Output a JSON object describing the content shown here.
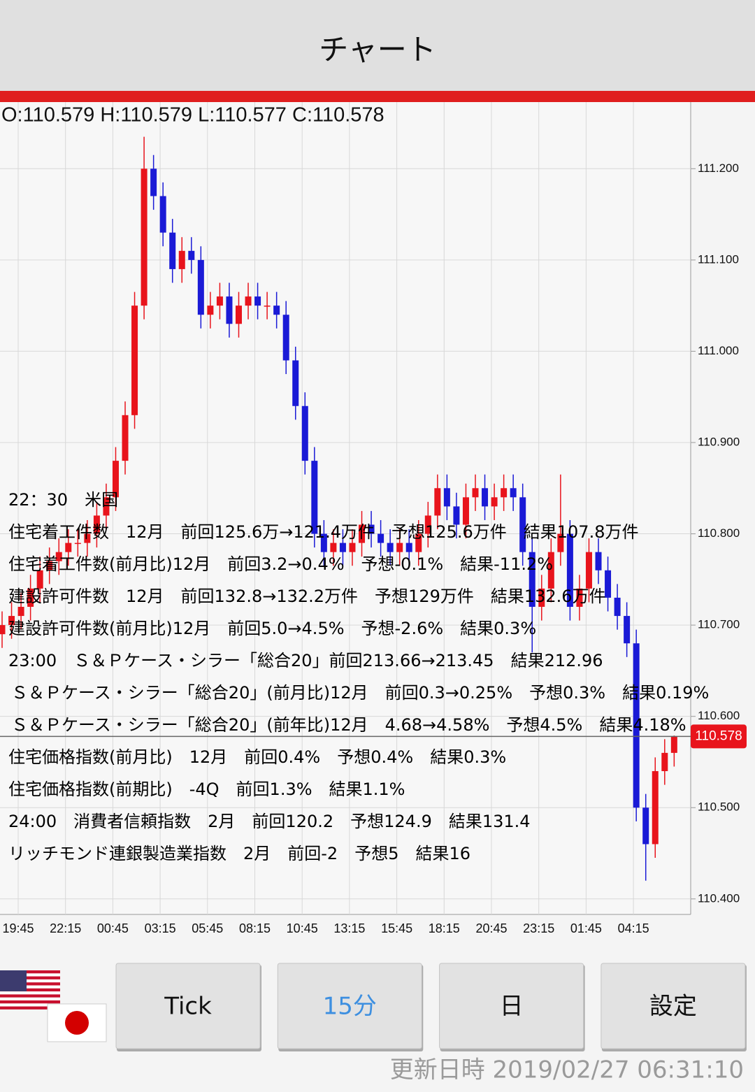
{
  "header": {
    "title": "チャート"
  },
  "ohlc_text": "O:110.579 H:110.579 L:110.577 C:110.578",
  "chart_data": {
    "type": "candlestick",
    "categories": [
      "19:45",
      "22:15",
      "00:45",
      "03:15",
      "05:45",
      "08:15",
      "10:45",
      "13:15",
      "15:45",
      "18:15",
      "20:45",
      "23:15",
      "01:45",
      "04:15"
    ],
    "up_color": "#e8141c",
    "down_color": "#1a1ad6",
    "ylim": [
      110.383,
      111.273
    ],
    "yticks": [
      {
        "value": 110.4,
        "label": "110.400"
      },
      {
        "value": 110.5,
        "label": "110.500"
      },
      {
        "value": 110.6,
        "label": "110.600"
      },
      {
        "value": 110.7,
        "label": "110.700"
      },
      {
        "value": 110.8,
        "label": "110.800"
      },
      {
        "value": 110.9,
        "label": "110.900"
      },
      {
        "value": 111.0,
        "label": "111.000"
      },
      {
        "value": 111.1,
        "label": "111.100"
      },
      {
        "value": 111.2,
        "label": "111.200"
      }
    ],
    "grid": true,
    "last_price": 110.578,
    "open": [
      110.69,
      110.7,
      110.71,
      110.72,
      110.74,
      110.76,
      110.77,
      110.78,
      110.79,
      110.79,
      110.8,
      110.82,
      110.84,
      110.88,
      110.93,
      111.05,
      111.2,
      111.17,
      111.13,
      111.09,
      111.11,
      111.1,
      111.04,
      111.05,
      111.06,
      111.03,
      111.05,
      111.06,
      111.05,
      111.05,
      111.04,
      110.99,
      110.94,
      110.88,
      110.8,
      110.78,
      110.79,
      110.78,
      110.79,
      110.81,
      110.8,
      110.79,
      110.78,
      110.79,
      110.78,
      110.8,
      110.82,
      110.85,
      110.83,
      110.81,
      110.84,
      110.85,
      110.83,
      110.84,
      110.85,
      110.84,
      110.78,
      110.72,
      110.74,
      110.78,
      110.8,
      110.72,
      110.74,
      110.78,
      110.76,
      110.73,
      110.71,
      110.68,
      110.5,
      110.46,
      110.54,
      110.56
    ],
    "high": [
      110.715,
      110.725,
      110.735,
      110.755,
      110.775,
      110.785,
      110.795,
      110.805,
      110.805,
      110.815,
      110.835,
      110.855,
      110.895,
      110.945,
      111.065,
      111.235,
      111.215,
      111.185,
      111.145,
      111.125,
      111.125,
      111.115,
      111.065,
      111.075,
      111.075,
      111.065,
      111.075,
      111.075,
      111.065,
      111.065,
      111.055,
      111.005,
      110.955,
      110.895,
      110.815,
      110.805,
      110.805,
      110.805,
      110.825,
      110.825,
      110.815,
      110.805,
      110.805,
      110.805,
      110.815,
      110.835,
      110.865,
      110.865,
      110.845,
      110.855,
      110.865,
      110.865,
      110.855,
      110.865,
      110.865,
      110.855,
      110.795,
      110.755,
      110.795,
      110.865,
      110.815,
      110.755,
      110.795,
      110.795,
      110.775,
      110.745,
      110.725,
      110.695,
      110.515,
      110.555,
      110.575,
      110.579
    ],
    "low": [
      110.675,
      110.685,
      110.695,
      110.705,
      110.725,
      110.745,
      110.755,
      110.765,
      110.775,
      110.775,
      110.785,
      110.805,
      110.825,
      110.865,
      110.915,
      111.035,
      111.155,
      111.115,
      111.075,
      111.075,
      111.085,
      111.025,
      111.025,
      111.035,
      111.015,
      111.015,
      111.035,
      111.035,
      111.035,
      111.025,
      110.975,
      110.925,
      110.865,
      110.785,
      110.765,
      110.765,
      110.765,
      110.765,
      110.775,
      110.785,
      110.775,
      110.765,
      110.765,
      110.765,
      110.765,
      110.785,
      110.805,
      110.815,
      110.795,
      110.795,
      110.825,
      110.815,
      110.815,
      110.825,
      110.825,
      110.765,
      110.67,
      110.705,
      110.725,
      110.765,
      110.705,
      110.705,
      110.725,
      110.745,
      110.715,
      110.695,
      110.665,
      110.485,
      110.42,
      110.445,
      110.525,
      110.545
    ],
    "close": [
      110.7,
      110.71,
      110.72,
      110.74,
      110.76,
      110.77,
      110.78,
      110.79,
      110.79,
      110.8,
      110.82,
      110.84,
      110.88,
      110.93,
      111.05,
      111.2,
      111.17,
      111.13,
      111.09,
      111.11,
      111.1,
      111.04,
      111.05,
      111.06,
      111.03,
      111.05,
      111.06,
      111.05,
      111.05,
      111.04,
      110.99,
      110.94,
      110.88,
      110.8,
      110.78,
      110.79,
      110.78,
      110.79,
      110.81,
      110.8,
      110.79,
      110.78,
      110.79,
      110.78,
      110.8,
      110.82,
      110.85,
      110.83,
      110.81,
      110.84,
      110.85,
      110.83,
      110.84,
      110.85,
      110.84,
      110.78,
      110.72,
      110.74,
      110.78,
      110.8,
      110.72,
      110.74,
      110.78,
      110.76,
      110.73,
      110.71,
      110.68,
      110.5,
      110.46,
      110.54,
      110.56,
      110.578
    ]
  },
  "news": {
    "lines": [
      "22：30　米国",
      "住宅着工件数　12月　前回125.6万→121.4万件　予想125.6万件　結果107.8万件",
      "住宅着工件数(前月比)12月　前回3.2→0.4%　予想-0.1%　結果-11.2%",
      "建設許可件数　12月　前回132.8→132.2万件　予想129万件　結果132.6万件",
      "建設許可件数(前月比)12月　前回5.0→4.5%　予想-2.6%　結果0.3%",
      "23:00　Ｓ＆Ｐケース・シラー「総合20」前回213.66→213.45　結果212.96",
      "Ｓ＆Ｐケース・シラー「総合20」(前月比)12月　前回0.3→0.25%　予想0.3%　結果0.19%",
      "Ｓ＆Ｐケース・シラー「総合20」(前年比)12月　4.68→4.58%　予想4.5%　結果4.18%",
      "住宅価格指数(前月比)　12月　前回0.4%　予想0.4%　結果0.3%",
      "住宅価格指数(前期比)　-4Q　前回1.3%　結果1.1%",
      "24:00　消費者信頼指数　2月　前回120.2　予想124.9　結果131.4",
      "リッチモンド連銀製造業指数　2月　前回-2　予想5　結果16"
    ]
  },
  "buttons": [
    {
      "label": "Tick"
    },
    {
      "label": "15分"
    },
    {
      "label": "日"
    },
    {
      "label": "設定"
    }
  ],
  "footer": {
    "updated": "更新日時 2019/02/27 06:31:10"
  }
}
